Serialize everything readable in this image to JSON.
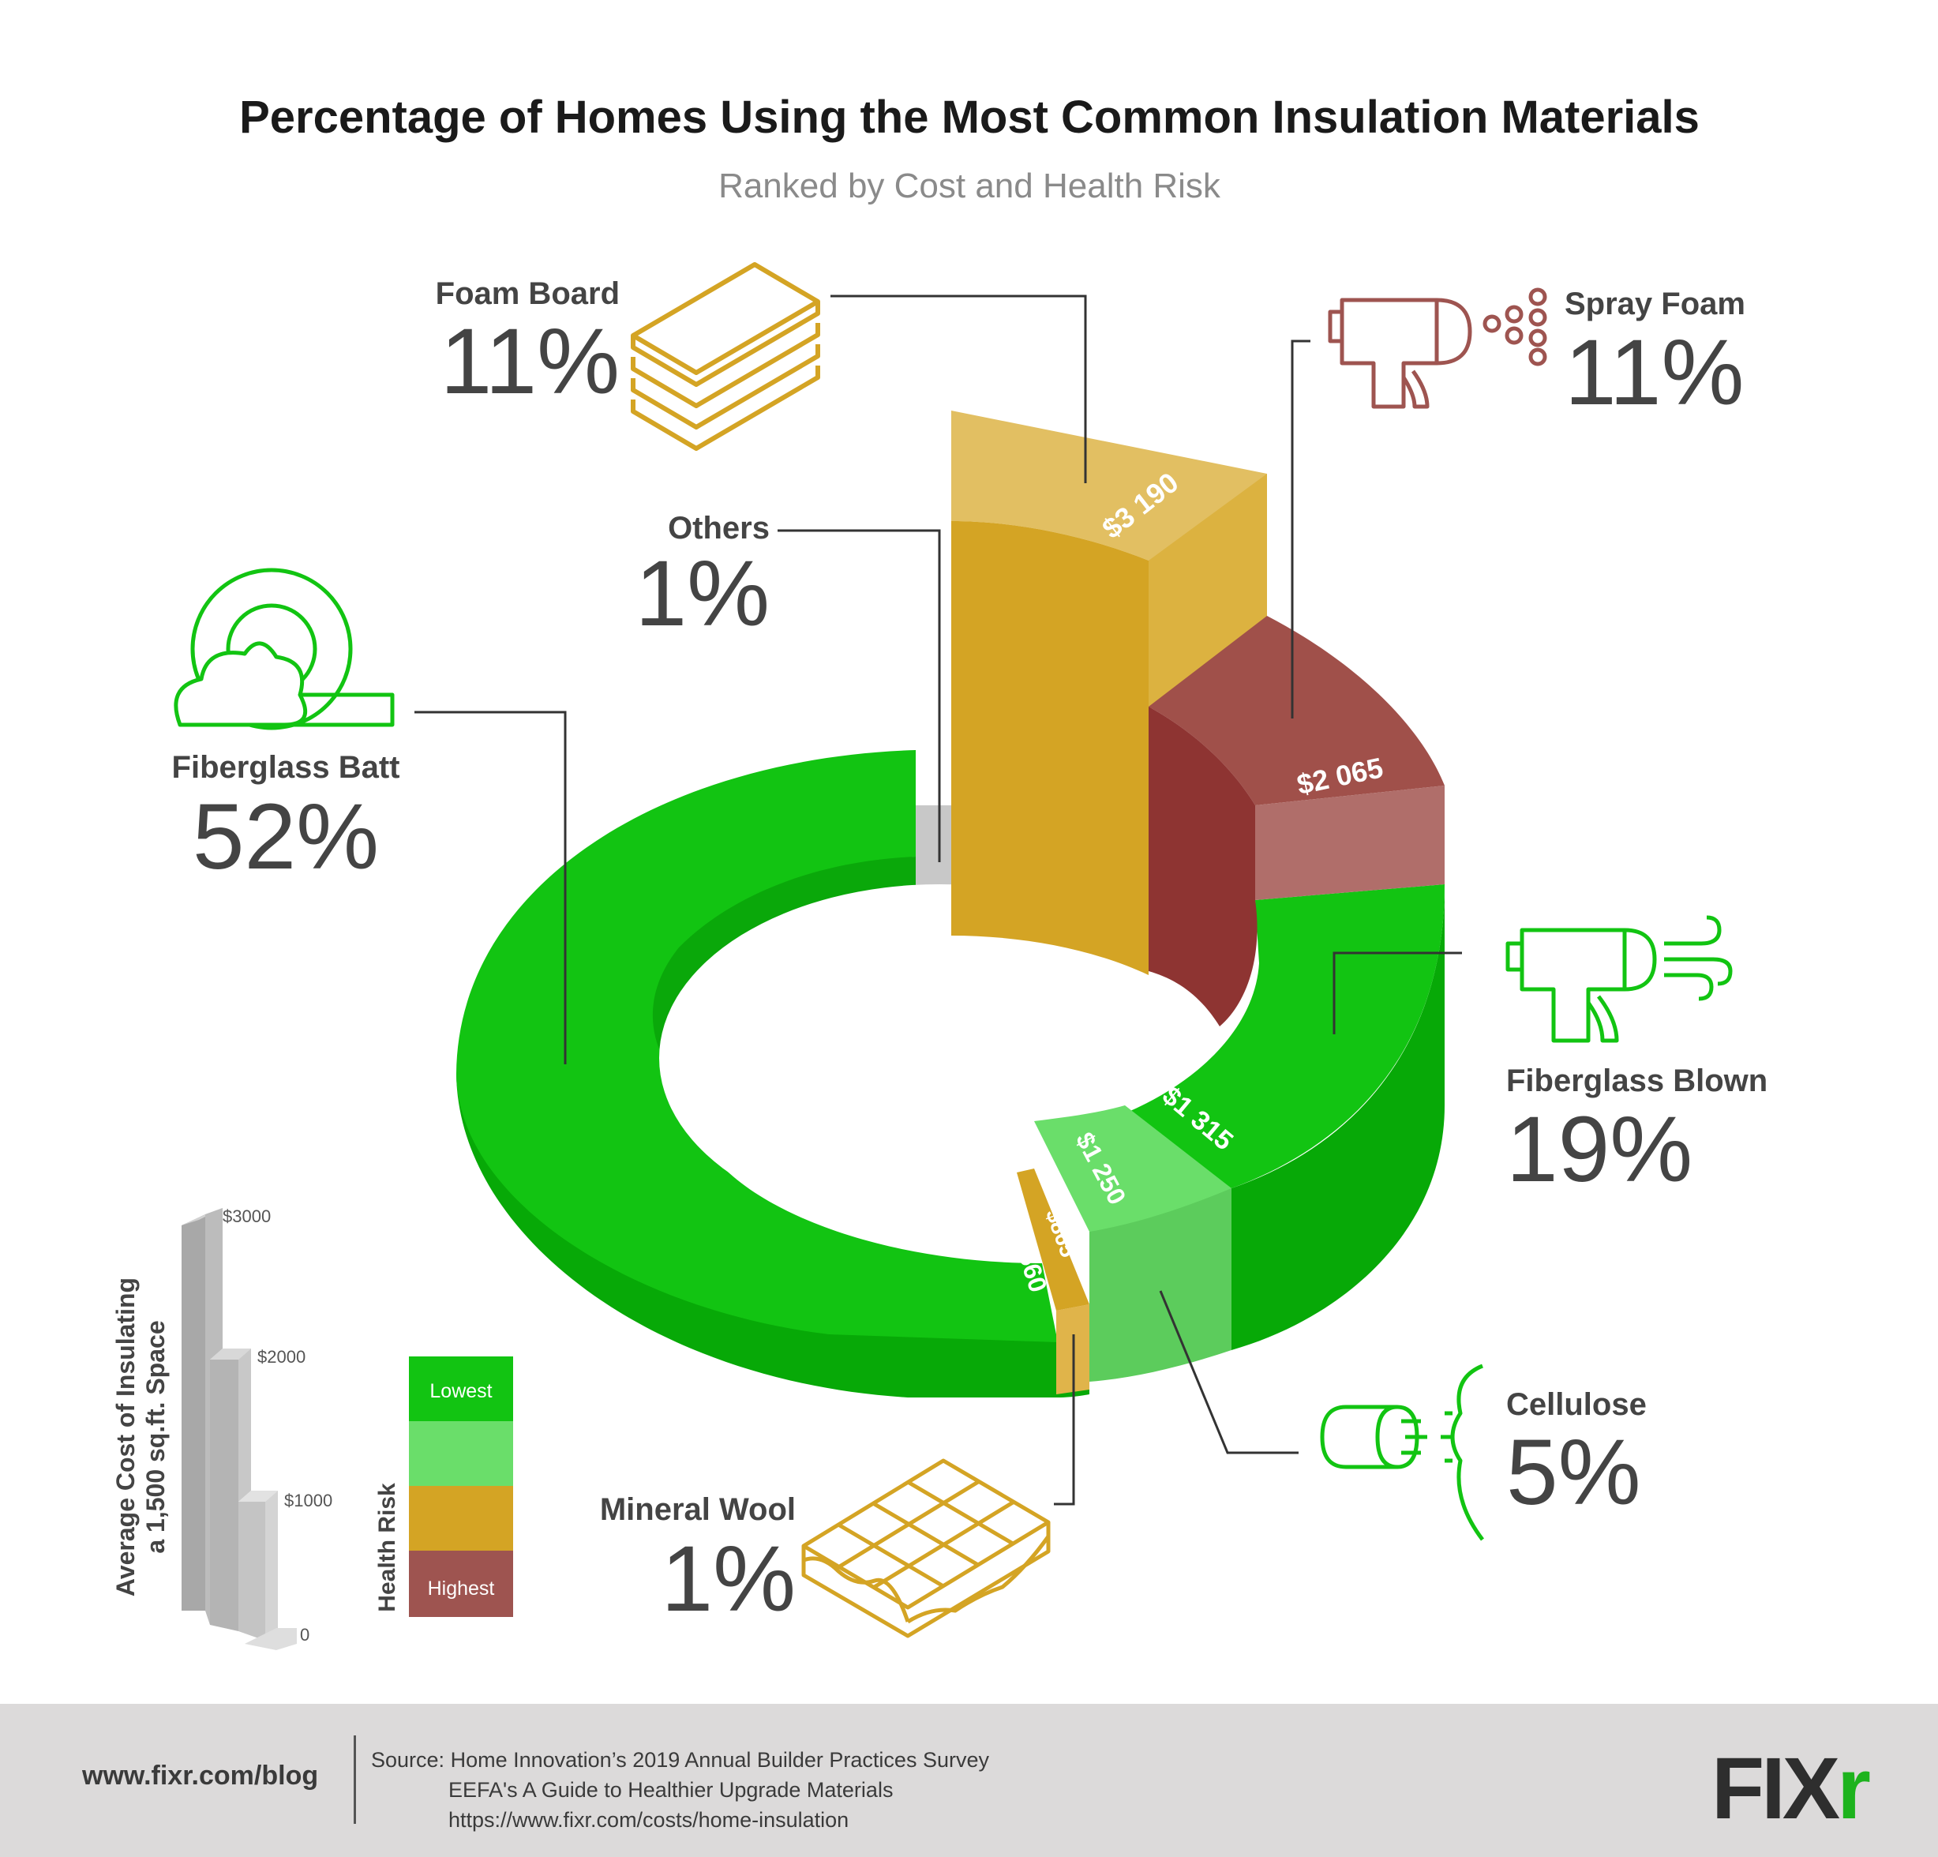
{
  "colors": {
    "fiberglass_batt": "#12c412",
    "fiberglass_blown": "#12c412",
    "cellulose": "#6ade6a",
    "mineral_wool": "#d4a424",
    "foam_board": "#d4a424",
    "spray_foam": "#9e5450",
    "others": "#c8c8c8",
    "risk_lowest": "#12c412",
    "risk_low": "#6ade6a",
    "risk_high": "#d4a424",
    "risk_highest": "#9e5450"
  },
  "chart_data": {
    "type": "pie",
    "title": "Percentage of Homes Using the Most Common Insulation Materials",
    "subtitle": "Ranked by Cost and Health Risk",
    "slices": [
      {
        "name": "Foam Board",
        "percent": "11%",
        "value": 11,
        "cost": 3190,
        "cost_label": "$3 190",
        "risk": "high",
        "icon": "foam-board-icon"
      },
      {
        "name": "Spray Foam",
        "percent": "11%",
        "value": 11,
        "cost": 2065,
        "cost_label": "$2 065",
        "risk": "highest",
        "icon": "spray-gun-icon"
      },
      {
        "name": "Fiberglass Blown",
        "percent": "19%",
        "value": 19,
        "cost": 1315,
        "cost_label": "$1 315",
        "risk": "lowest",
        "icon": "blower-icon"
      },
      {
        "name": "Cellulose",
        "percent": "5%",
        "value": 5,
        "cost": 1250,
        "cost_label": "$1 250",
        "risk": "low",
        "icon": "cellulose-sprayer-icon"
      },
      {
        "name": "Mineral Wool",
        "percent": "1%",
        "value": 1,
        "cost": 865,
        "cost_label": "$865",
        "risk": "high",
        "icon": "mineral-wool-icon"
      },
      {
        "name": "Fiberglass Batt",
        "percent": "52%",
        "value": 52,
        "cost": 560,
        "cost_label": "$560",
        "risk": "lowest",
        "icon": "fiberglass-roll-icon"
      },
      {
        "name": "Others",
        "percent": "1%",
        "value": 1,
        "cost": 0,
        "cost_label": "",
        "risk": "none",
        "icon": ""
      }
    ],
    "cost_axis": {
      "label_line1": "Average Cost of  Insulating",
      "label_line2": "a 1,500 sq.ft. Space",
      "ticks": [
        "$3000",
        "$2000",
        "$1000",
        "0"
      ],
      "tick_values": [
        3000,
        2000,
        1000,
        0
      ]
    },
    "risk_legend": {
      "label": "Health Risk",
      "levels": [
        {
          "text": "Lowest",
          "color": "#12c412"
        },
        {
          "text": "",
          "color": "#6ade6a"
        },
        {
          "text": "",
          "color": "#d4a424"
        },
        {
          "text": "Highest",
          "color": "#9e5450"
        }
      ]
    }
  },
  "footer": {
    "site": "www.fixr.com/blog",
    "source_prefix": "Source:",
    "source_lines": [
      "Home Innovation’s 2019 Annual Builder Practices Survey",
      "EEFA's A Guide to Healthier Upgrade Materials",
      "https://www.fixr.com/costs/home-insulation"
    ],
    "logo_main": "FIX",
    "logo_accent": "r"
  }
}
